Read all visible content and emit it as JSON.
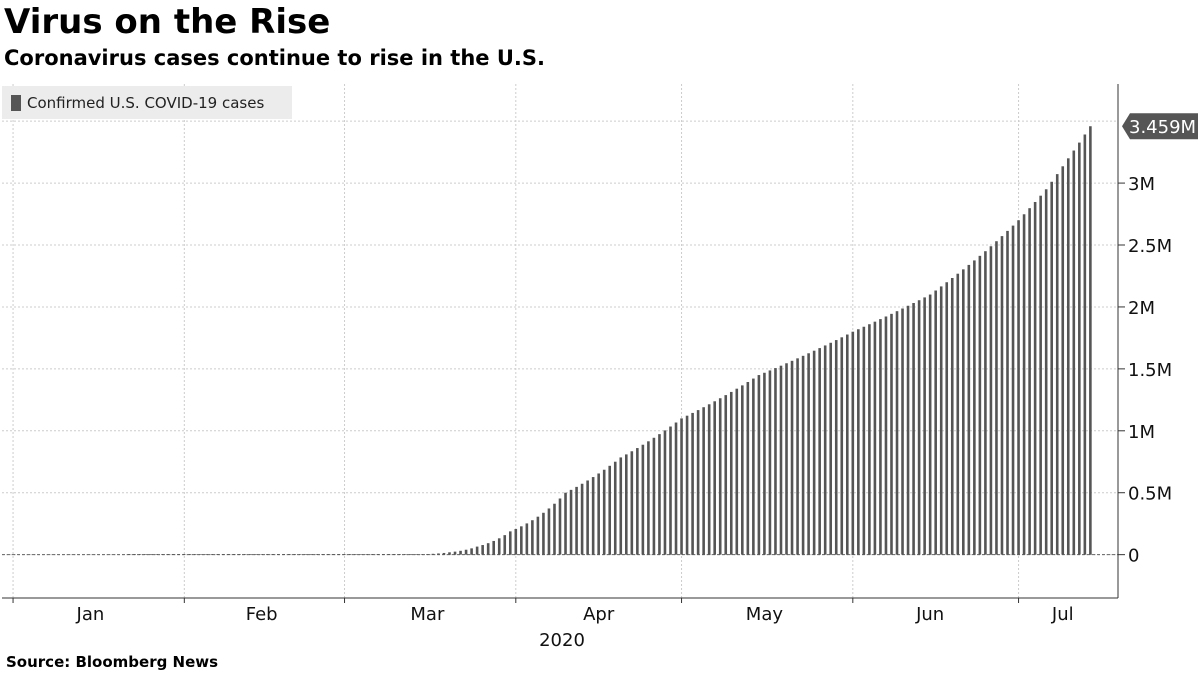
{
  "header": {
    "title": "Virus on the Rise",
    "subtitle": "Coronavirus cases continue to rise in the U.S."
  },
  "footer": {
    "source": "Source: Bloomberg News"
  },
  "colors": {
    "bar": "#555555",
    "grid": "#cccccc",
    "legend_bg": "#ececec",
    "badge": "#555555"
  },
  "chart_data": {
    "type": "bar",
    "legend": {
      "label": "Confirmed U.S. COVID-19 cases",
      "placement": "top-left"
    },
    "x_ticks": [
      "Jan",
      "Feb",
      "Mar",
      "Apr",
      "May",
      "Jun",
      "Jul"
    ],
    "x_year_label": "2020",
    "y_ticks": [
      "0",
      "0.5M",
      "1M",
      "1.5M",
      "2M",
      "2.5M",
      "3M"
    ],
    "y_tick_values": [
      0,
      500000,
      1000000,
      1500000,
      2000000,
      2500000,
      3000000
    ],
    "ylim": [
      -350000,
      3800000
    ],
    "grid": true,
    "last_value_label": "3.459M",
    "anchors": [
      [
        "2020-01-22",
        1
      ],
      [
        "2020-03-01",
        75
      ],
      [
        "2020-03-10",
        1000
      ],
      [
        "2020-03-15",
        3500
      ],
      [
        "2020-03-20",
        19000
      ],
      [
        "2020-03-25",
        65000
      ],
      [
        "2020-03-31",
        188000
      ],
      [
        "2020-04-10",
        500000
      ],
      [
        "2020-04-20",
        785000
      ],
      [
        "2020-05-01",
        1100000
      ],
      [
        "2020-05-15",
        1450000
      ],
      [
        "2020-06-01",
        1800000
      ],
      [
        "2020-06-15",
        2100000
      ],
      [
        "2020-06-25",
        2450000
      ],
      [
        "2020-07-01",
        2700000
      ],
      [
        "2020-07-06",
        2950000
      ],
      [
        "2020-07-10",
        3200000
      ],
      [
        "2020-07-14",
        3459000
      ]
    ]
  }
}
